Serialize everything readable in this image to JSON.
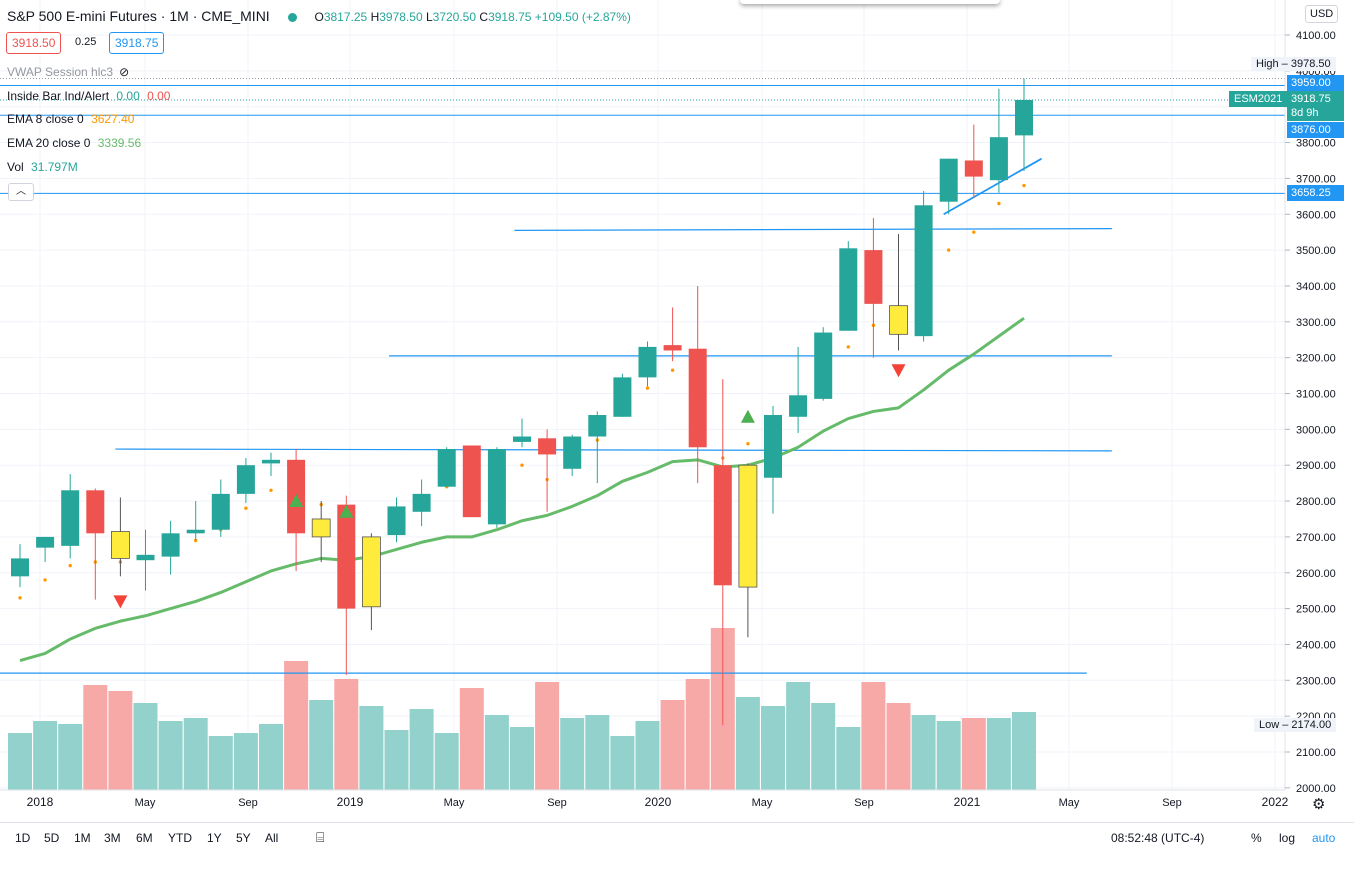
{
  "header": {
    "symbol_title": "S&P 500 E-mini Futures · 1M · CME_MINI",
    "open_label": "O",
    "open_value": "3817.25",
    "high_label": "H",
    "high_value": "3978.50",
    "low_label": "L",
    "low_value": "3720.50",
    "close_label": "C",
    "close_value": "3918.75",
    "change": "+109.50 (+2.87%)"
  },
  "trade": {
    "sell_price": "3918.50",
    "spread": "0.25",
    "buy_price": "3918.75"
  },
  "legend": {
    "vwap": "VWAP Session hlc3",
    "inside_bar": "Inside Bar Ind/Alert",
    "inside_v1": "0.00",
    "inside_v2": "0.00",
    "ema8": "EMA 8 close 0",
    "ema8_value": "3627.40",
    "ema20": "EMA 20 close 0",
    "ema20_value": "3339.56",
    "vol": "Vol",
    "vol_value": "31.797M"
  },
  "price_scale": {
    "currency": "USD",
    "ticks": [
      "4100.00",
      "4000.00",
      "3900.00",
      "3800.00",
      "3700.00",
      "3600.00",
      "3500.00",
      "3400.00",
      "3300.00",
      "3200.00",
      "3100.00",
      "3000.00",
      "2900.00",
      "2800.00",
      "2700.00",
      "2600.00",
      "2500.00",
      "2400.00",
      "2300.00",
      "2200.00",
      "2100.00",
      "2000.00"
    ],
    "high_label": "High",
    "high_value": "3978.50",
    "low_label": "Low",
    "low_value": "2174.00",
    "line_3959": "3959.00",
    "line_3876": "3876.00",
    "line_3658": "3658.25",
    "last_price": "3918.75",
    "countdown": "8d 9h",
    "contract": "ESM2021"
  },
  "time_axis": {
    "labels": [
      "2018",
      "May",
      "Sep",
      "2019",
      "May",
      "Sep",
      "2020",
      "May",
      "Sep",
      "2021",
      "May",
      "Sep",
      "2022"
    ]
  },
  "bottom_bar": {
    "ranges": [
      "1D",
      "5D",
      "1M",
      "3M",
      "6M",
      "YTD",
      "1Y",
      "5Y",
      "All"
    ],
    "clock": "08:52:48 (UTC-4)",
    "pct": "%",
    "log": "log",
    "auto": "auto"
  },
  "colors": {
    "up": "#26a69a",
    "down": "#ef5350",
    "inside": "#ffeb3b",
    "ema8": "#ff9800",
    "ema20": "#66bb6a",
    "line": "#2196f3"
  },
  "chart_data": {
    "type": "candlestick",
    "timeframe": "1M",
    "ylim": [
      2000,
      4100
    ],
    "candles": [
      {
        "o": 2590,
        "h": 2680,
        "l": 2560,
        "c": 2640,
        "dir": "up"
      },
      {
        "o": 2670,
        "h": 2700,
        "l": 2630,
        "c": 2700,
        "dir": "up"
      },
      {
        "o": 2675,
        "h": 2875,
        "l": 2640,
        "c": 2830,
        "dir": "up"
      },
      {
        "o": 2830,
        "h": 2835,
        "l": 2525,
        "c": 2710,
        "dir": "down"
      },
      {
        "o": 2715,
        "h": 2810,
        "l": 2590,
        "c": 2640,
        "dir": "inside"
      },
      {
        "o": 2635,
        "h": 2720,
        "l": 2550,
        "c": 2650,
        "dir": "up"
      },
      {
        "o": 2645,
        "h": 2745,
        "l": 2595,
        "c": 2710,
        "dir": "up"
      },
      {
        "o": 2710,
        "h": 2800,
        "l": 2690,
        "c": 2720,
        "dir": "up"
      },
      {
        "o": 2720,
        "h": 2860,
        "l": 2700,
        "c": 2820,
        "dir": "up"
      },
      {
        "o": 2820,
        "h": 2920,
        "l": 2795,
        "c": 2900,
        "dir": "up"
      },
      {
        "o": 2905,
        "h": 2935,
        "l": 2870,
        "c": 2915,
        "dir": "up"
      },
      {
        "o": 2915,
        "h": 2945,
        "l": 2605,
        "c": 2710,
        "dir": "down"
      },
      {
        "o": 2700,
        "h": 2800,
        "l": 2630,
        "c": 2750,
        "dir": "inside"
      },
      {
        "o": 2790,
        "h": 2815,
        "l": 2315,
        "c": 2500,
        "dir": "down"
      },
      {
        "o": 2505,
        "h": 2710,
        "l": 2440,
        "c": 2700,
        "dir": "inside"
      },
      {
        "o": 2705,
        "h": 2810,
        "l": 2685,
        "c": 2785,
        "dir": "up"
      },
      {
        "o": 2770,
        "h": 2860,
        "l": 2730,
        "c": 2820,
        "dir": "up"
      },
      {
        "o": 2840,
        "h": 2950,
        "l": 2840,
        "c": 2945,
        "dir": "up"
      },
      {
        "o": 2955,
        "h": 2955,
        "l": 2755,
        "c": 2755,
        "dir": "down"
      },
      {
        "o": 2735,
        "h": 2950,
        "l": 2725,
        "c": 2945,
        "dir": "up"
      },
      {
        "o": 2965,
        "h": 3030,
        "l": 2950,
        "c": 2980,
        "dir": "up"
      },
      {
        "o": 2975,
        "h": 3000,
        "l": 2770,
        "c": 2930,
        "dir": "down"
      },
      {
        "o": 2890,
        "h": 2985,
        "l": 2870,
        "c": 2980,
        "dir": "up"
      },
      {
        "o": 2980,
        "h": 3050,
        "l": 2850,
        "c": 3040,
        "dir": "up"
      },
      {
        "o": 3035,
        "h": 3155,
        "l": 3035,
        "c": 3145,
        "dir": "up"
      },
      {
        "o": 3145,
        "h": 3245,
        "l": 3120,
        "c": 3230,
        "dir": "up"
      },
      {
        "o": 3235,
        "h": 3340,
        "l": 3190,
        "c": 3220,
        "dir": "down"
      },
      {
        "o": 3225,
        "h": 3400,
        "l": 2850,
        "c": 2950,
        "dir": "down"
      },
      {
        "o": 2900,
        "h": 3140,
        "l": 2175,
        "c": 2565,
        "dir": "down"
      },
      {
        "o": 2560,
        "h": 2905,
        "l": 2420,
        "c": 2900,
        "dir": "inside"
      },
      {
        "o": 2865,
        "h": 3065,
        "l": 2765,
        "c": 3040,
        "dir": "up"
      },
      {
        "o": 3035,
        "h": 3230,
        "l": 2990,
        "c": 3095,
        "dir": "up"
      },
      {
        "o": 3085,
        "h": 3285,
        "l": 3080,
        "c": 3270,
        "dir": "up"
      },
      {
        "o": 3275,
        "h": 3525,
        "l": 3275,
        "c": 3505,
        "dir": "up"
      },
      {
        "o": 3500,
        "h": 3590,
        "l": 3200,
        "c": 3350,
        "dir": "down"
      },
      {
        "o": 3345,
        "h": 3545,
        "l": 3220,
        "c": 3265,
        "dir": "inside"
      },
      {
        "o": 3260,
        "h": 3665,
        "l": 3245,
        "c": 3625,
        "dir": "up"
      },
      {
        "o": 3635,
        "h": 3755,
        "l": 3600,
        "c": 3755,
        "dir": "up"
      },
      {
        "o": 3750,
        "h": 3850,
        "l": 3645,
        "c": 3705,
        "dir": "down"
      },
      {
        "o": 3695,
        "h": 3950,
        "l": 3660,
        "c": 3815,
        "dir": "up"
      },
      {
        "o": 3820,
        "h": 3978.5,
        "l": 3720.5,
        "c": 3918.75,
        "dir": "up"
      }
    ],
    "volume": [
      {
        "v": 0.19,
        "dir": "up"
      },
      {
        "v": 0.23,
        "dir": "up"
      },
      {
        "v": 0.22,
        "dir": "up"
      },
      {
        "v": 0.35,
        "dir": "down"
      },
      {
        "v": 0.33,
        "dir": "down"
      },
      {
        "v": 0.29,
        "dir": "up"
      },
      {
        "v": 0.23,
        "dir": "up"
      },
      {
        "v": 0.24,
        "dir": "up"
      },
      {
        "v": 0.18,
        "dir": "up"
      },
      {
        "v": 0.19,
        "dir": "up"
      },
      {
        "v": 0.22,
        "dir": "up"
      },
      {
        "v": 0.43,
        "dir": "down"
      },
      {
        "v": 0.3,
        "dir": "up"
      },
      {
        "v": 0.37,
        "dir": "down"
      },
      {
        "v": 0.28,
        "dir": "up"
      },
      {
        "v": 0.2,
        "dir": "up"
      },
      {
        "v": 0.27,
        "dir": "up"
      },
      {
        "v": 0.19,
        "dir": "up"
      },
      {
        "v": 0.34,
        "dir": "down"
      },
      {
        "v": 0.25,
        "dir": "up"
      },
      {
        "v": 0.21,
        "dir": "up"
      },
      {
        "v": 0.36,
        "dir": "down"
      },
      {
        "v": 0.24,
        "dir": "up"
      },
      {
        "v": 0.25,
        "dir": "up"
      },
      {
        "v": 0.18,
        "dir": "up"
      },
      {
        "v": 0.23,
        "dir": "up"
      },
      {
        "v": 0.3,
        "dir": "down"
      },
      {
        "v": 0.37,
        "dir": "down"
      },
      {
        "v": 0.54,
        "dir": "down"
      },
      {
        "v": 0.31,
        "dir": "up"
      },
      {
        "v": 0.28,
        "dir": "up"
      },
      {
        "v": 0.36,
        "dir": "up"
      },
      {
        "v": 0.29,
        "dir": "up"
      },
      {
        "v": 0.21,
        "dir": "up"
      },
      {
        "v": 0.36,
        "dir": "down"
      },
      {
        "v": 0.29,
        "dir": "down"
      },
      {
        "v": 0.25,
        "dir": "up"
      },
      {
        "v": 0.23,
        "dir": "up"
      },
      {
        "v": 0.24,
        "dir": "down"
      },
      {
        "v": 0.24,
        "dir": "up"
      },
      {
        "v": 0.26,
        "dir": "up"
      }
    ],
    "ema20": [
      2355,
      2375,
      2415,
      2445,
      2465,
      2480,
      2500,
      2520,
      2545,
      2575,
      2605,
      2625,
      2640,
      2635,
      2645,
      2665,
      2685,
      2700,
      2700,
      2720,
      2745,
      2760,
      2785,
      2815,
      2855,
      2880,
      2910,
      2915,
      2895,
      2900,
      2920,
      2950,
      2995,
      3030,
      3050,
      3060,
      3110,
      3165,
      3210,
      3260,
      3310
    ],
    "ema8": [
      2530,
      2580,
      2620,
      2630,
      2630,
      2640,
      2660,
      2690,
      2720,
      2780,
      2830,
      2780,
      2790,
      2700,
      2690,
      2740,
      2790,
      2840,
      2800,
      2850,
      2900,
      2860,
      2900,
      2970,
      3040,
      3115,
      3165,
      3080,
      2920,
      2960,
      3000,
      3060,
      3125,
      3230,
      3290,
      3280,
      3405,
      3500,
      3550,
      3630,
      3680
    ],
    "inside_bar_signals": [
      {
        "i": 4,
        "type": "down",
        "price": 2520
      },
      {
        "i": 11,
        "type": "up",
        "price": 2800
      },
      {
        "i": 13,
        "type": "up",
        "price": 2770
      },
      {
        "i": 29,
        "type": "up",
        "price": 3035
      },
      {
        "i": 35,
        "type": "down",
        "price": 3165
      }
    ],
    "horizontal_lines": [
      3959,
      3876,
      3658.25
    ],
    "segments": [
      {
        "x1": 19.7,
        "p1": 3555,
        "x2": 43.5,
        "p2": 3560
      },
      {
        "x1": 14.7,
        "p1": 3205,
        "x2": 43.5,
        "p2": 3205
      },
      {
        "x1": 3.8,
        "p1": 2945,
        "x2": 43.5,
        "p2": 2940
      },
      {
        "x1": -2,
        "p1": 2320,
        "x2": 42.5,
        "p2": 2320
      },
      {
        "x1": 36.8,
        "p1": 3600,
        "x2": 40.7,
        "p2": 3755
      }
    ]
  }
}
